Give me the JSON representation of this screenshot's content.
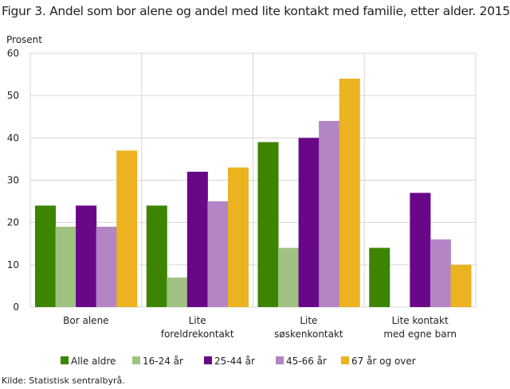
{
  "chart_data": {
    "type": "bar",
    "title": "Figur 3. Andel som bor alene og andel med lite kontakt med familie, etter alder. 2015",
    "ylabel": "Prosent",
    "xlabel": "",
    "ylim": [
      0,
      60
    ],
    "yticks": [
      0,
      10,
      20,
      30,
      40,
      50,
      60
    ],
    "grid": true,
    "legend_position": "bottom",
    "categories": [
      [
        "Bor alene"
      ],
      [
        "Lite",
        "foreldrekontakt"
      ],
      [
        "Lite",
        "søskenkontakt"
      ],
      [
        "Lite kontakt",
        "med egne barn"
      ]
    ],
    "series": [
      {
        "name": "Alle aldre",
        "color": "#3d8400",
        "values": [
          24,
          24,
          39,
          14
        ]
      },
      {
        "name": "16-24 år",
        "color": "#9fc282",
        "values": [
          19,
          7,
          14,
          null
        ]
      },
      {
        "name": "25-44 år",
        "color": "#690789",
        "values": [
          24,
          32,
          40,
          27
        ]
      },
      {
        "name": "45-66 år",
        "color": "#b385c4",
        "values": [
          19,
          25,
          44,
          16
        ]
      },
      {
        "name": "67 år og over",
        "color": "#eab31f",
        "values": [
          37,
          33,
          54,
          10
        ]
      }
    ],
    "source": "Kilde: Statistisk sentralbyrå."
  }
}
